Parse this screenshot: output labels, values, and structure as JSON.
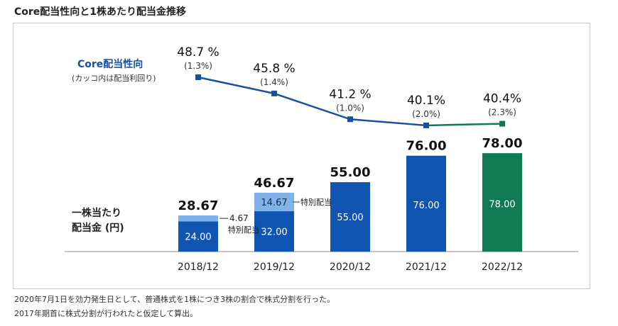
{
  "page": {
    "title": "Core配当性向と1株あたり配当金推移",
    "notes": [
      "2020年7月1日を効力発生日として、普通株式を1株につき3株の割合で株式分割を行った。",
      "2017年期首に株式分割が行われたと仮定して算出。"
    ]
  },
  "chart_data": {
    "type": "bar",
    "categories": [
      "2018/12",
      "2019/12",
      "2020/12",
      "2021/12",
      "2022/12"
    ],
    "bar_label_line1": "一株当たり",
    "bar_label_line2": "配当金 (円)",
    "line_label_line1": "Core配当性向",
    "line_label_line2": "(カッコ内は配当利回り)",
    "ylim": [
      0,
      80
    ],
    "series": [
      {
        "name": "",
        "values": [
          24.0,
          32.0,
          55.0,
          76.0,
          78.0
        ],
        "value_labels": [
          "24.00",
          "32.00",
          "55.00",
          "76.00",
          "78.00"
        ],
        "colors": [
          "#0f55b1",
          "#0f55b1",
          "#0f55b1",
          "#0f55b1",
          "#107a55"
        ]
      },
      {
        "name": "",
        "values": [
          4.67,
          14.67,
          0,
          0,
          0
        ],
        "value_labels": [
          "4.67",
          "14.67",
          "",
          "",
          ""
        ],
        "color": "#7fb3ea"
      }
    ],
    "totals": [
      "28.67",
      "46.67",
      "55.00",
      "76.00",
      "78.00"
    ],
    "special_label": "特別配当",
    "line": {
      "values": [
        48.7,
        45.8,
        41.2,
        40.1,
        40.4
      ],
      "labels": [
        "48.7 %",
        "45.8 %",
        "41.2 %",
        "40.1%",
        "40.4%"
      ],
      "yields": [
        "(1.3%)",
        "(1.4%)",
        "(1.0%)",
        "(2.0%)",
        "(2.3%)"
      ],
      "color": "#1a4fa0",
      "last_segment_color": "#107a55"
    }
  }
}
